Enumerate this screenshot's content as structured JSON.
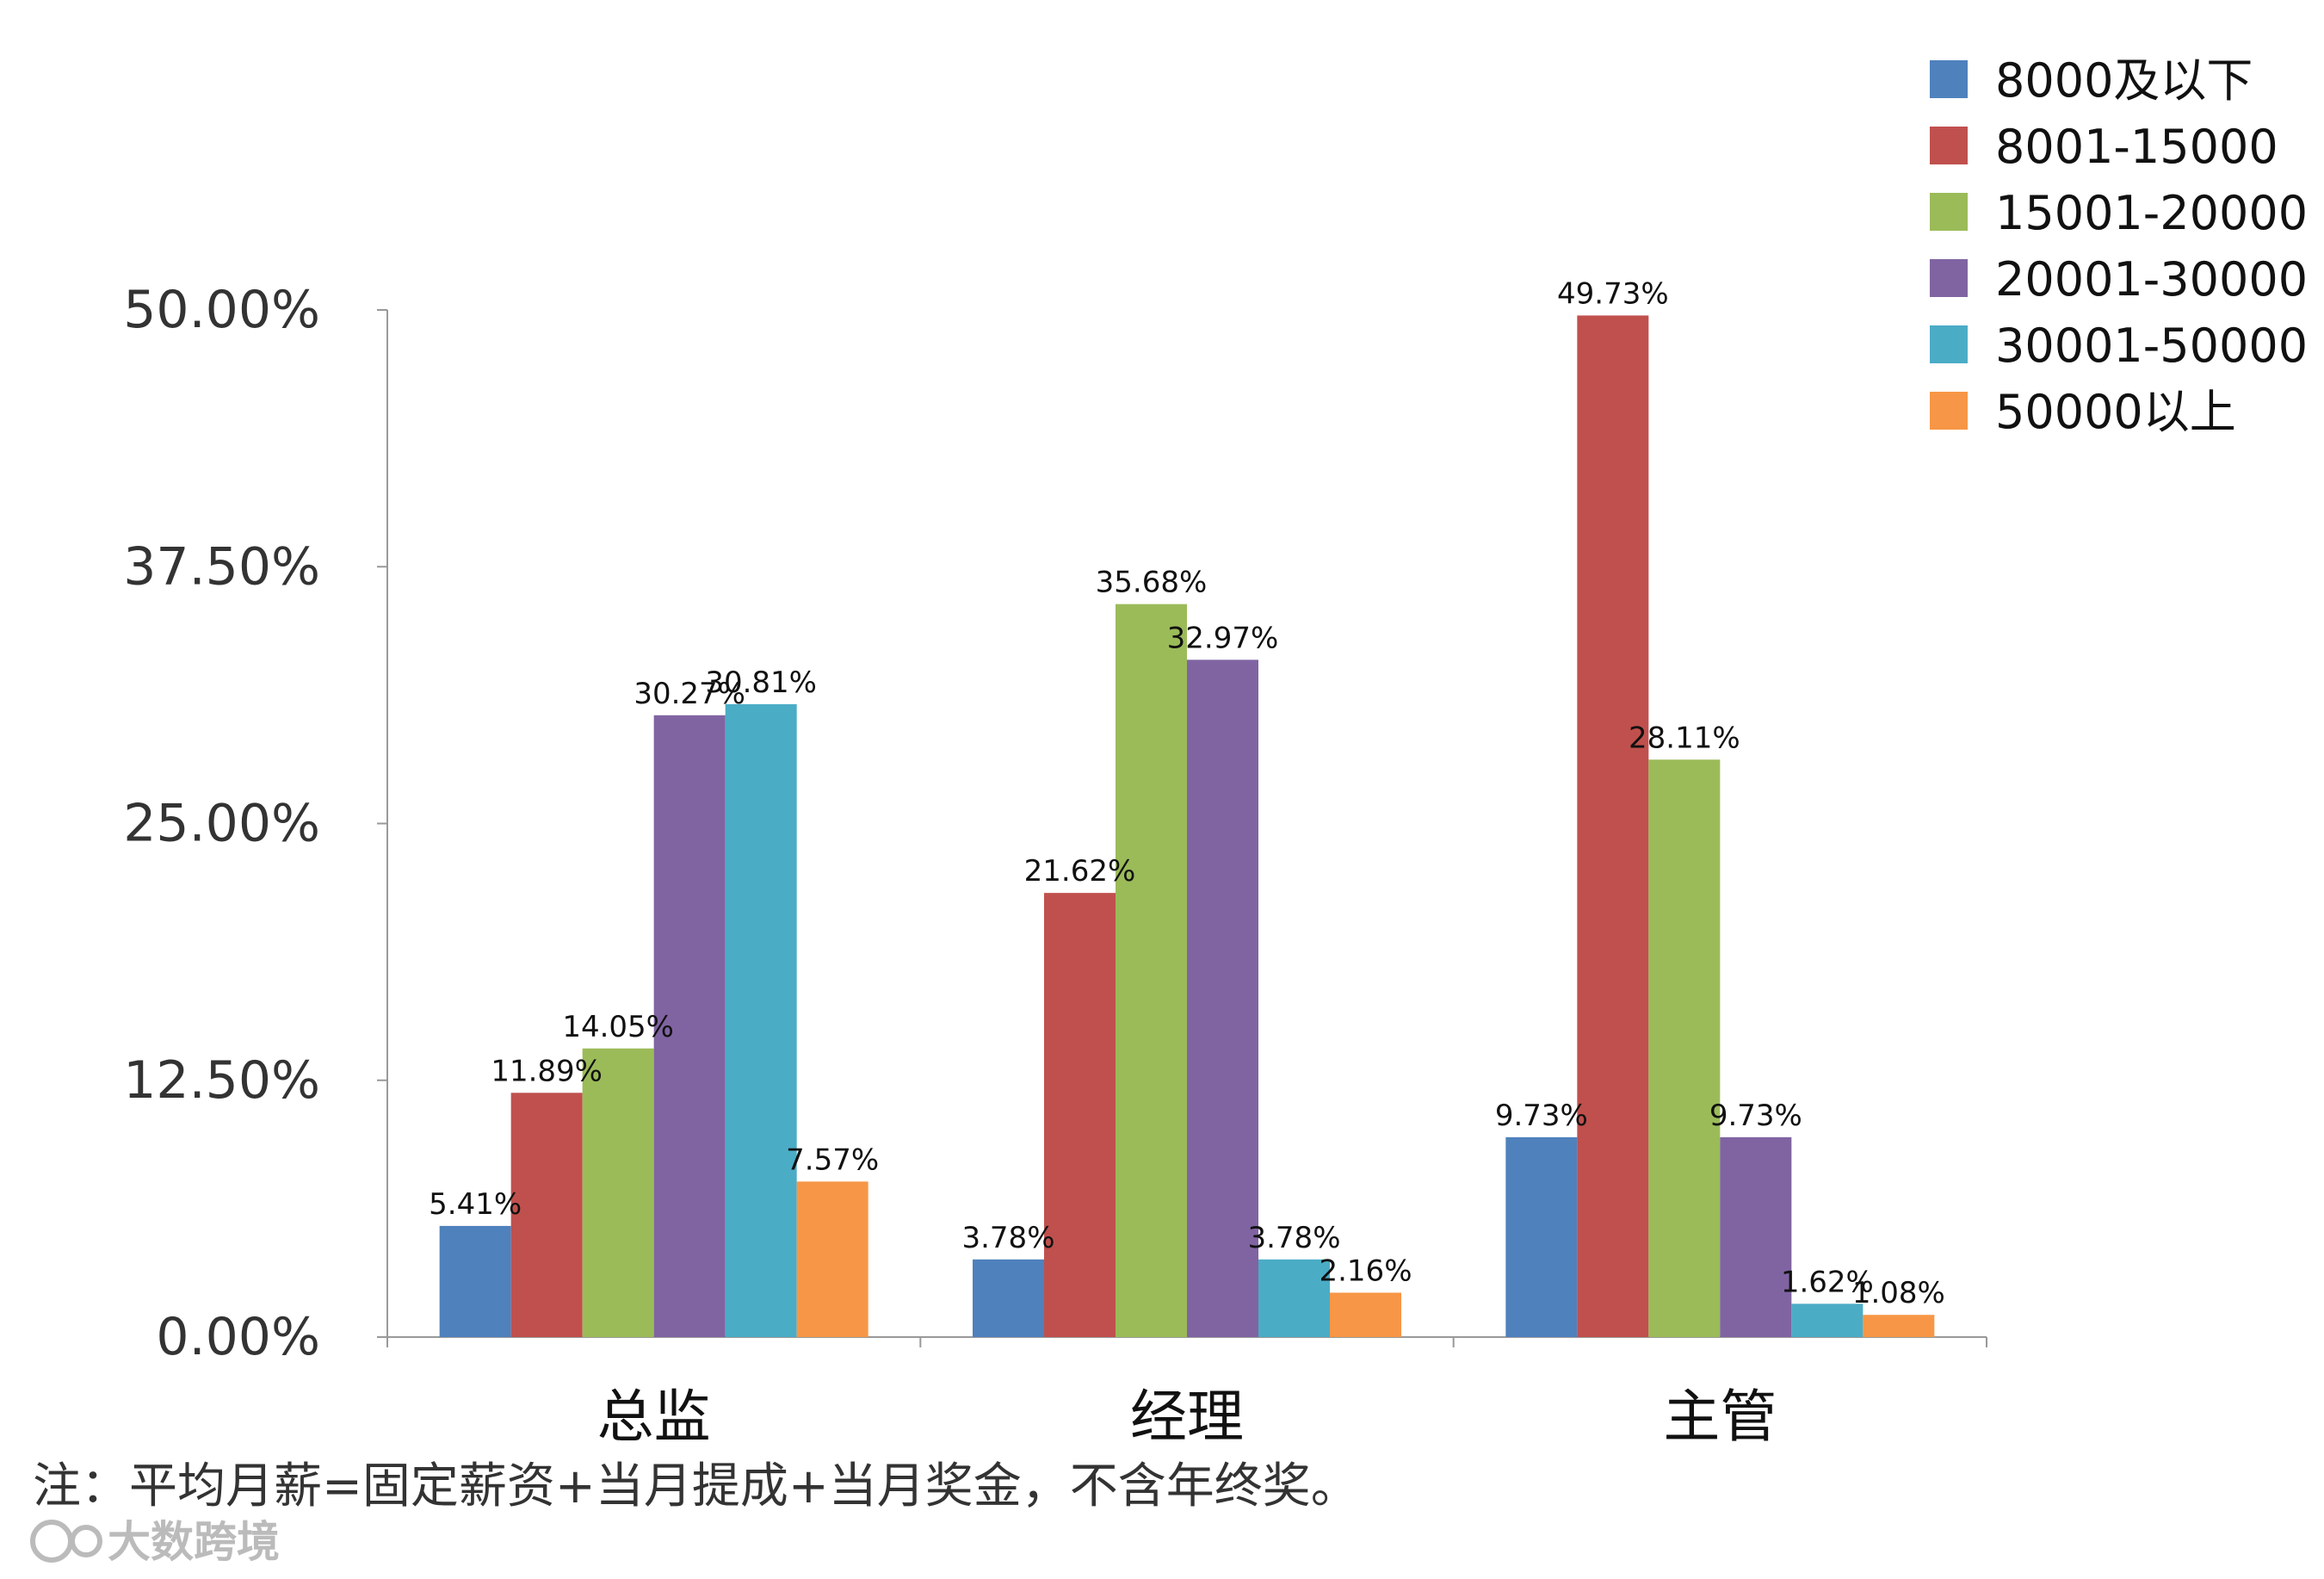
{
  "chart_data": {
    "type": "bar",
    "categories": [
      "总监",
      "经理",
      "主管"
    ],
    "series": [
      {
        "name": "8000及以下",
        "color": "#4F81BD",
        "values": [
          5.41,
          3.78,
          9.73
        ]
      },
      {
        "name": "8001-15000",
        "color": "#C0504D",
        "values": [
          11.89,
          21.62,
          49.73
        ]
      },
      {
        "name": "15001-20000",
        "color": "#9BBB59",
        "values": [
          14.05,
          35.68,
          28.11
        ]
      },
      {
        "name": "20001-30000",
        "color": "#8064A2",
        "values": [
          30.27,
          32.97,
          9.73
        ]
      },
      {
        "name": "30001-50000",
        "color": "#4BACC6",
        "values": [
          30.81,
          3.78,
          1.62
        ]
      },
      {
        "name": "50000以上",
        "color": "#F79646",
        "values": [
          7.57,
          2.16,
          1.08
        ]
      }
    ],
    "value_suffix": "%",
    "yticks": [
      "0.00%",
      "12.50%",
      "25.00%",
      "37.50%",
      "50.00%"
    ],
    "ylim": [
      0,
      50
    ],
    "ytick_values": [
      0,
      12.5,
      25,
      37.5,
      50
    ],
    "legend_position": "top-right",
    "grid": false
  },
  "footnote": "注：平均月薪=固定薪资+当月提成+当月奖金，不含年终奖。",
  "brand_text": "大数跨境"
}
